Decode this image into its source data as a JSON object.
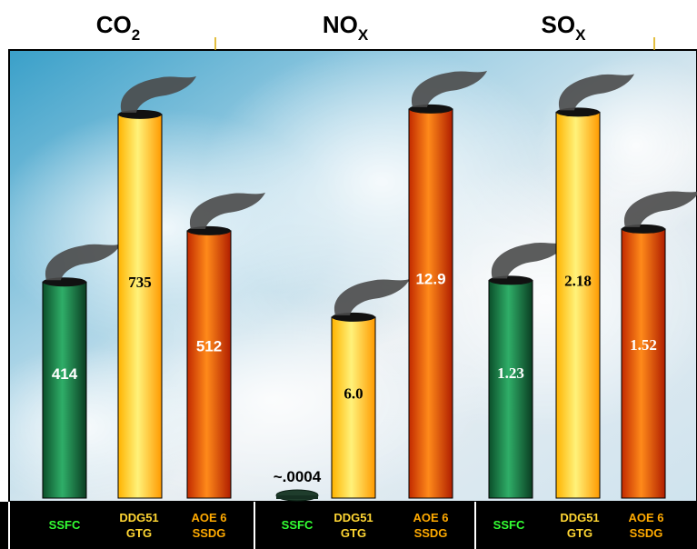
{
  "colors": {
    "green": "#178a4c",
    "yellow": "#ffd21a",
    "orange": "#f04c08",
    "smoke": "#4a4a4a",
    "label_green": "#33ff33",
    "label_yellow": "#ffd633",
    "label_orange": "#ffaa00",
    "band": "#000000"
  },
  "chart_data": [
    {
      "type": "bar",
      "title": "CO",
      "title_sub": "2",
      "categories": [
        "SSFC",
        "DDG51 GTG",
        "AOE 6 SSDG"
      ],
      "category_lines": [
        [
          "SSFC"
        ],
        [
          "DDG51",
          "GTG"
        ],
        [
          "AOE 6",
          "SSDG"
        ]
      ],
      "values": [
        414,
        735,
        512
      ],
      "value_labels": [
        "414",
        "735",
        "512"
      ],
      "colors": [
        "green",
        "yellow",
        "orange"
      ],
      "ylim": [
        0,
        780
      ]
    },
    {
      "type": "bar",
      "title": "NO",
      "title_sub": "X",
      "categories": [
        "SSFC",
        "DDG51 GTG",
        "AOE 6 SSDG"
      ],
      "category_lines": [
        [
          "SSFC"
        ],
        [
          "DDG51",
          "GTG"
        ],
        [
          "AOE 6",
          "SSDG"
        ]
      ],
      "values": [
        0.0004,
        6.0,
        12.9
      ],
      "value_labels": [
        "~.0004",
        "6.0",
        "12.9"
      ],
      "colors": [
        "green",
        "yellow",
        "orange"
      ],
      "ylim": [
        0,
        13.5
      ]
    },
    {
      "type": "bar",
      "title": "SO",
      "title_sub": "X",
      "categories": [
        "SSFC",
        "DDG51 GTG",
        "AOE 6 SSDG"
      ],
      "category_lines": [
        [
          "SSFC"
        ],
        [
          "DDG51",
          "GTG"
        ],
        [
          "AOE 6",
          "SSDG"
        ]
      ],
      "values": [
        1.23,
        2.18,
        1.52
      ],
      "value_labels": [
        "1.23",
        "2.18",
        "1.52"
      ],
      "colors": [
        "green",
        "yellow",
        "orange"
      ],
      "ylim": [
        0,
        2.3
      ]
    }
  ]
}
